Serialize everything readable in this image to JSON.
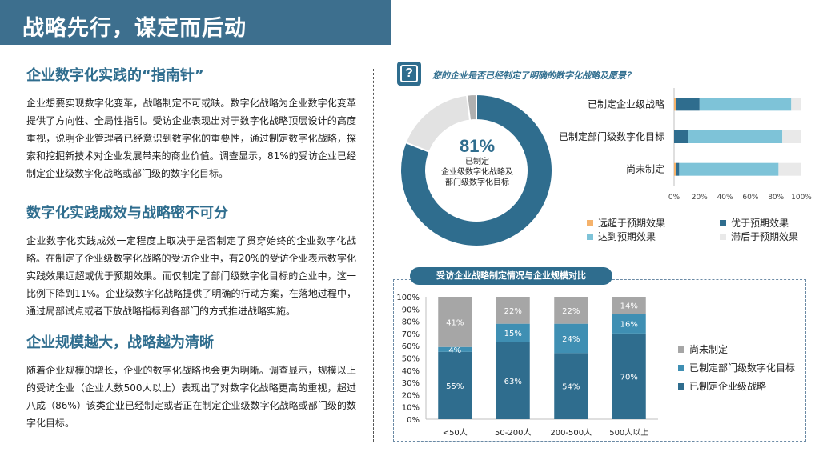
{
  "page": {
    "title": "战略先行，谋定而后动"
  },
  "sections": [
    {
      "heading": "企业数字化实践的“指南针”",
      "body": "企业想要实现数字化变革，战略制定不可或缺。数字化战略为企业数字化变革提供了方向性、全局性指引。受访企业表现出对于数字化战略顶层设计的高度重视，说明企业管理者已经意识到数字化的重要性，通过制定数字化战略，探索和挖掘新技术对企业发展带来的商业价值。调查显示，81%的受访企业已经制定企业级数字化战略或部门级的数字化目标。"
    },
    {
      "heading": "数字化实践成效与战略密不可分",
      "body": "企业数字化实践成效一定程度上取决于是否制定了贯穿始终的企业数字化战略。在制定了企业级数字化战略的受访企业中，有20%的受访企业表示数字化实践效果远超或优于预期效果。而仅制定了部门级数字化目标的企业中，这一比例下降到11%。企业级数字化战略提供了明确的行动方案，在落地过程中，通过局部试点或者下放战略指标到各部门的方式推进战略实施。"
    },
    {
      "heading": "企业规模越大，战略越为清晰",
      "body": "随着企业规模的增长，企业的数字化战略也会更为明晰。调查显示，规模以上的受访企业（企业人数500人以上）表现出了对数字化战略更高的重视，超过八成（86%）该类企业已经制定或者正在制定企业级数字化战略或部门级的数字化目标。"
    }
  ],
  "question": {
    "icon": "question-mark-icon",
    "icon_glyph": "?",
    "text": "您的企业是否已经制定了明确的数字化战略及愿景？"
  },
  "chart_data": [
    {
      "type": "pie",
      "variant": "donut",
      "center_value": "81%",
      "center_label_lines": [
        "已制定",
        "企业级数字化战略及",
        "部门级数字化目标"
      ],
      "slices": [
        {
          "value": 81,
          "color": "#2f6d8e"
        },
        {
          "value": 17,
          "color": "#e2e2e2"
        },
        {
          "value": 2,
          "color": "#b0b0b0"
        }
      ]
    },
    {
      "type": "bar",
      "orientation": "horizontal",
      "stacked": true,
      "categories": [
        "已制定企业级战略",
        "已制定部门级数字化目标",
        "尚未制定"
      ],
      "series": [
        {
          "name": "远超于预期效果",
          "color": "#f5b26b",
          "values": [
            1.5,
            0,
            1.5
          ]
        },
        {
          "name": "优于预期效果",
          "color": "#2f6d8e",
          "values": [
            18.5,
            11,
            2.5
          ]
        },
        {
          "name": "达到预期效果",
          "color": "#7ec3d8",
          "values": [
            72,
            74,
            78
          ]
        },
        {
          "name": "滞后于预期效果",
          "color": "#e9e9e9",
          "values": [
            8,
            15,
            18
          ]
        }
      ],
      "xlim": [
        0,
        100
      ],
      "xticks": [
        "0%",
        "20%",
        "40%",
        "60%",
        "80%",
        "100%"
      ],
      "legend_position": "bottom",
      "legend_order": [
        "远超于预期效果",
        "优于预期效果",
        "达到预期效果",
        "滞后于预期效果"
      ]
    },
    {
      "type": "bar",
      "orientation": "vertical",
      "stacked": true,
      "title": "受访企业战略制定情况与企业规模对比",
      "categories": [
        "<50人",
        "50-200人",
        "200-500人",
        "500人以上"
      ],
      "series": [
        {
          "name": "已制定企业级战略",
          "color": "#2f6d8e",
          "values": [
            55,
            63,
            54,
            70
          ],
          "labels": [
            "55%",
            "63%",
            "54%",
            "70%"
          ]
        },
        {
          "name": "已制定部门级数字化目标",
          "color": "#3f8fb3",
          "values": [
            4,
            15,
            24,
            16
          ],
          "labels": [
            "4%",
            "15%",
            "24%",
            "16%"
          ]
        },
        {
          "name": "尚未制定",
          "color": "#a6a6a6",
          "values": [
            41,
            22,
            22,
            14
          ],
          "labels": [
            "41%",
            "22%",
            "22%",
            "14%"
          ]
        }
      ],
      "ylim": [
        0,
        100
      ],
      "yticks": [
        "0%",
        "10%",
        "20%",
        "30%",
        "40%",
        "50%",
        "60%",
        "70%",
        "80%",
        "90%",
        "100%"
      ],
      "legend_position": "right",
      "legend_order": [
        "尚未制定",
        "已制定部门级数字化目标",
        "已制定企业级战略"
      ]
    }
  ]
}
